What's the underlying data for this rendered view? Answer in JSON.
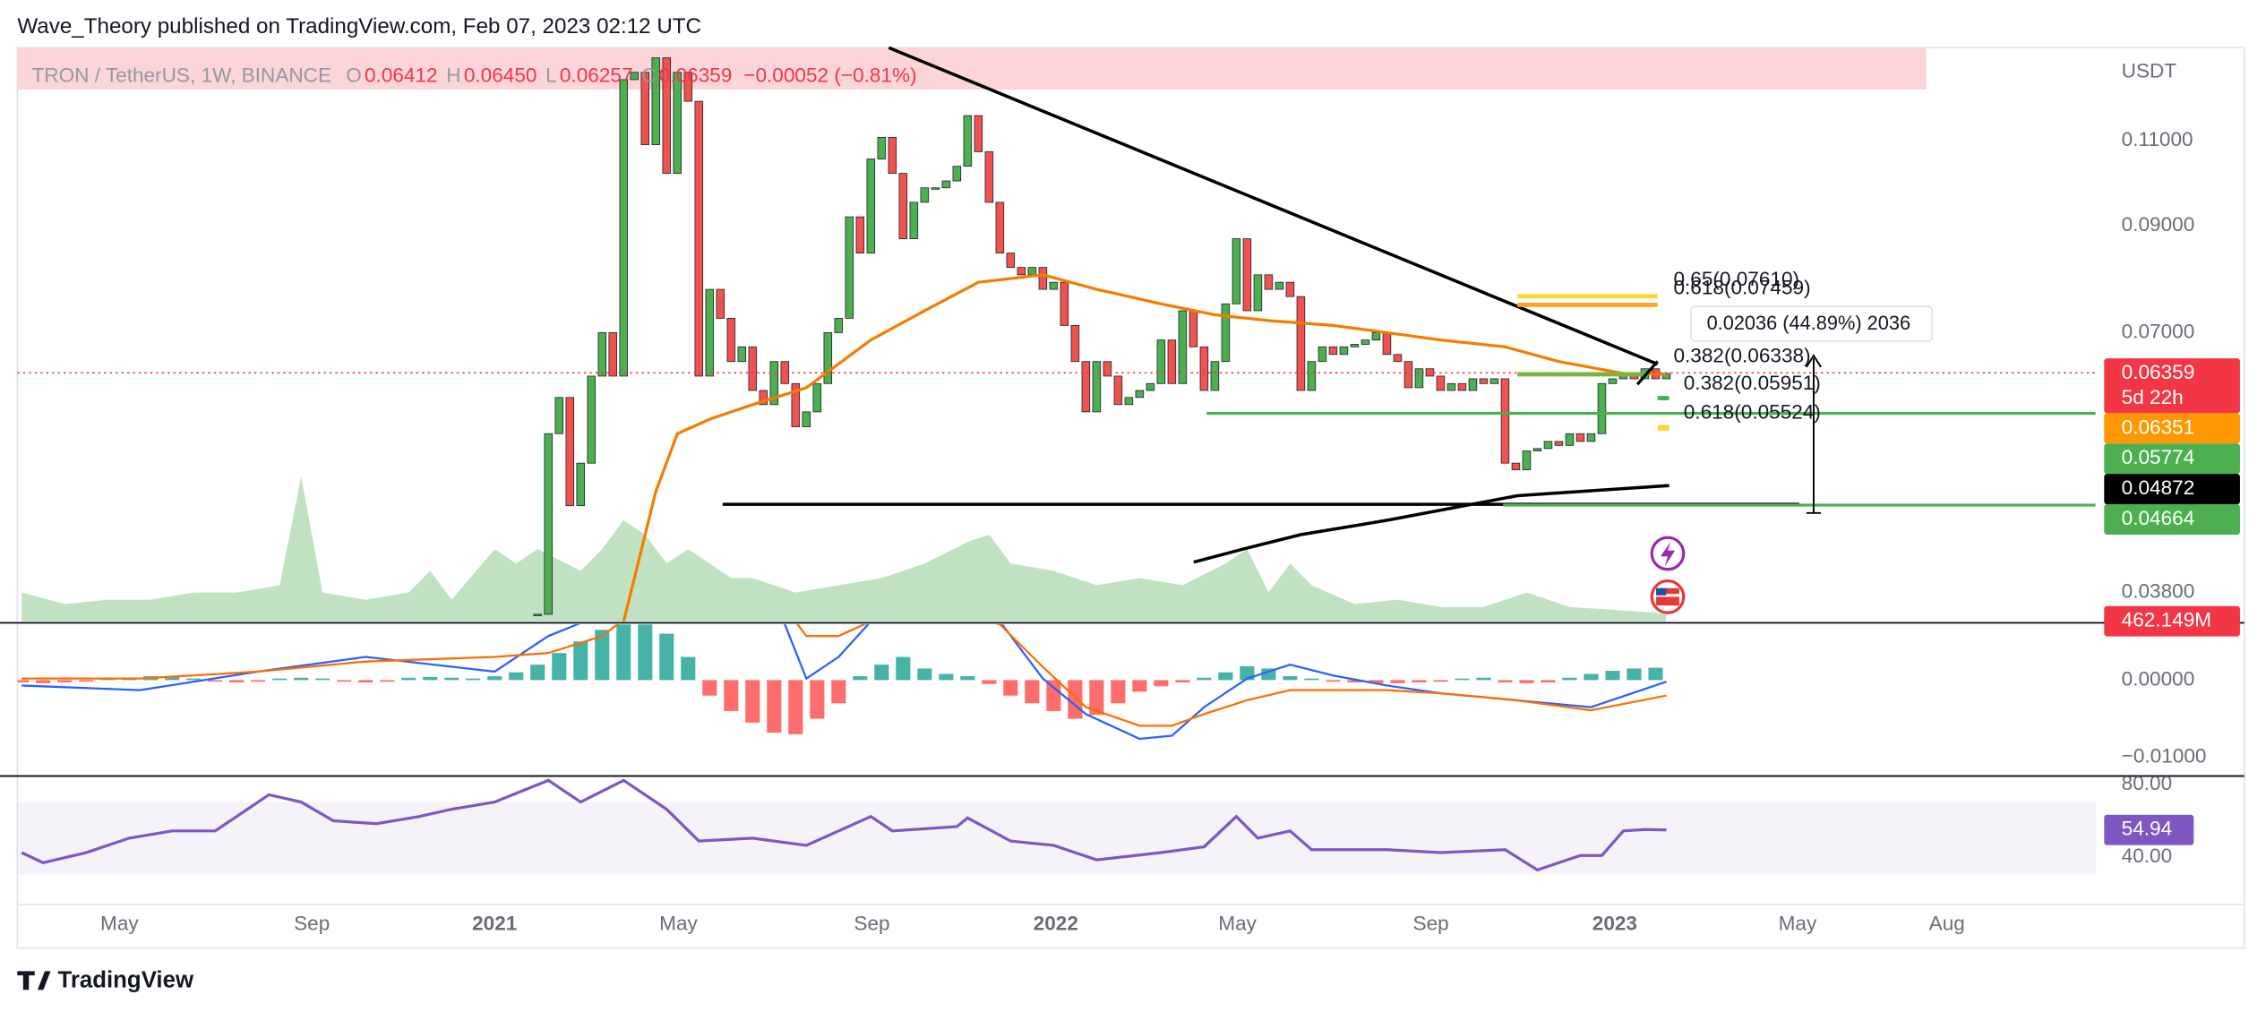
{
  "header": {
    "title": "Wave_Theory published on TradingView.com, Feb 07, 2023 02:12 UTC"
  },
  "footer": {
    "brand": "TradingView"
  },
  "chart_data": {
    "type": "candlestick",
    "legend": {
      "symbol": "TRON / TetherUS, 1W, BINANCE",
      "ohlc": [
        {
          "key": "O",
          "value": 0.06412
        },
        {
          "key": "H",
          "value": 0.0645,
          "label": "0.06450"
        },
        {
          "key": "L",
          "value": 0.06257
        },
        {
          "key": "C",
          "value": 0.06359
        }
      ],
      "change": "−0.00052 (−0.81%)"
    },
    "currency": "USDT",
    "log_scale": true,
    "xlim": [
      -44.4,
      149
    ],
    "xticks": [
      {
        "value": -34.9,
        "label": "May"
      },
      {
        "value": -17,
        "label": "Sep"
      },
      {
        "value": 0,
        "label": "2021"
      },
      {
        "value": 17.1,
        "label": "May"
      },
      {
        "value": 35.1,
        "label": "Sep"
      },
      {
        "value": 52.2,
        "label": "2022"
      },
      {
        "value": 69.1,
        "label": "May"
      },
      {
        "value": 87.1,
        "label": "Sep"
      },
      {
        "value": 104.2,
        "label": "2023"
      },
      {
        "value": 121.2,
        "label": "May"
      },
      {
        "value": 135.1,
        "label": "Aug"
      }
    ],
    "ylim": [
      0.0355,
      0.1368
    ],
    "yticks": [
      {
        "value": 0.11,
        "label": "0.11000"
      },
      {
        "value": 0.09,
        "label": "0.09000"
      },
      {
        "value": 0.07,
        "label": "0.07000"
      },
      {
        "value": 0.038,
        "label": "0.03800"
      }
    ],
    "up_color": "#4caf50",
    "down_color": "#ef5350",
    "border_color": "#1e222d",
    "x": [
      4,
      5,
      6,
      7,
      8,
      9,
      10,
      11,
      12,
      13,
      14,
      15,
      16,
      17,
      18,
      19,
      20,
      21,
      22,
      23,
      24,
      25,
      26,
      27,
      28,
      29,
      30,
      31,
      32,
      33,
      34,
      35,
      36,
      37,
      38,
      39,
      40,
      41,
      42,
      43,
      44,
      45,
      46,
      47,
      48,
      49,
      50,
      51,
      52,
      53,
      54,
      55,
      56,
      57,
      58,
      59,
      60,
      61,
      62,
      63,
      64,
      65,
      66,
      67,
      68,
      69,
      70,
      71,
      72,
      73,
      74,
      75,
      76,
      77,
      78,
      79,
      80,
      81,
      82,
      83,
      84,
      85,
      86,
      87,
      88,
      89,
      90,
      91,
      92,
      93,
      94,
      95,
      96,
      97,
      98,
      99,
      100,
      101,
      102,
      103,
      104,
      105,
      106,
      107,
      108,
      109
    ],
    "close": [
      0.0361,
      0.0552,
      0.0601,
      0.0466,
      0.0515,
      0.0632,
      0.07,
      0.0632,
      0.1269,
      0.1291,
      0.1089,
      0.1336,
      0.1018,
      0.1291,
      0.1206,
      0.0632,
      0.0775,
      0.0724,
      0.0654,
      0.0677,
      0.0611,
      0.0591,
      0.0654,
      0.0621,
      0.0561,
      0.0581,
      0.0621,
      0.07,
      0.0724,
      0.0919,
      0.0844,
      0.1053,
      0.1108,
      0.1018,
      0.0873,
      0.0951,
      0.0984,
      0.0984,
      0.1,
      0.1035,
      0.1166,
      0.1071,
      0.0951,
      0.0844,
      0.0816,
      0.0802,
      0.0816,
      0.0775,
      0.0788,
      0.0712,
      0.0654,
      0.0581,
      0.0654,
      0.0632,
      0.0591,
      0.0601,
      0.0611,
      0.0621,
      0.0688,
      0.0621,
      0.0737,
      0.0677,
      0.0611,
      0.0654,
      0.0749,
      0.0873,
      0.0737,
      0.0802,
      0.0775,
      0.0788,
      0.0762,
      0.0611,
      0.0654,
      0.0677,
      0.0665,
      0.0677,
      0.0681,
      0.0688,
      0.07,
      0.0665,
      0.0654,
      0.0615,
      0.0643,
      0.0632,
      0.0611,
      0.0621,
      0.0611,
      0.0628,
      0.0621,
      0.0628,
      0.0515,
      0.0507,
      0.053,
      0.0533,
      0.0542,
      0.0537,
      0.0552,
      0.0542,
      0.0552,
      0.0621,
      0.0628,
      0.0636,
      0.0628,
      0.0643,
      0.0628,
      0.06359
    ],
    "ma": {
      "color": "#f57c00",
      "x": [
        12,
        15,
        17,
        20,
        24,
        29,
        35,
        40,
        45,
        51,
        56,
        62,
        67,
        72,
        78,
        83,
        88,
        94,
        99,
        105,
        109
      ],
      "values": [
        0.0355,
        0.0482,
        0.0552,
        0.0571,
        0.0591,
        0.0615,
        0.0688,
        0.0737,
        0.0788,
        0.0802,
        0.0775,
        0.0749,
        0.073,
        0.072,
        0.0712,
        0.07,
        0.0688,
        0.0677,
        0.0654,
        0.0636,
        0.06351
      ]
    },
    "price_labels": [
      {
        "value": 0.06359,
        "color": "#f23645",
        "sub": "5d 22h"
      },
      {
        "value": 0.06351,
        "color": "#ff9800"
      },
      {
        "value": 0.05774,
        "color": "#4caf50"
      },
      {
        "value": 0.04872,
        "color": "#000000"
      },
      {
        "value": 0.04664,
        "color": "#4caf50"
      }
    ],
    "annotations": {
      "fib": [
        "0.65(0.07610)",
        "0.618(0.07459)",
        "0.382(0.06338)",
        "0.382(0.05951)",
        "0.618(0.05524)"
      ],
      "measure": "0.02036 (44.89%) 2036"
    },
    "volume": {
      "color": "#a5d6a7",
      "ylim": [
        0,
        39700
      ],
      "label_color": "#f23645",
      "last_label": "462.149M",
      "x": [
        -44,
        -40,
        -36,
        -32,
        -28,
        -24,
        -20,
        -18,
        -16,
        -12,
        -8,
        -6,
        -4,
        0,
        2,
        4,
        8,
        10,
        12,
        14,
        16,
        18,
        20,
        22,
        24,
        28,
        32,
        36,
        40,
        44,
        46,
        48,
        52,
        56,
        60,
        64,
        68,
        70,
        72,
        74,
        76,
        80,
        84,
        88,
        92,
        94,
        96,
        100,
        104,
        108,
        109
      ],
      "values": [
        2000,
        1200,
        1500,
        1500,
        2000,
        2000,
        2500,
        10000,
        2000,
        1500,
        2000,
        3500,
        1500,
        5000,
        4000,
        5000,
        3500,
        5000,
        7000,
        6000,
        4000,
        5000,
        4000,
        3000,
        3000,
        2000,
        2500,
        3000,
        4000,
        5500,
        6000,
        4000,
        3500,
        2500,
        3000,
        2500,
        4000,
        5000,
        2000,
        4000,
        2500,
        1200,
        1500,
        1000,
        1000,
        1500,
        2000,
        1000,
        800,
        600,
        462.149
      ]
    },
    "macd": {
      "ylim": [
        -0.01222,
        0.00722
      ],
      "yticks": [
        {
          "value": 0,
          "label": "0.00000"
        },
        {
          "value": -0.01,
          "label": "−0.01000"
        }
      ],
      "x": [
        -44,
        -33,
        -22,
        -12,
        0,
        5,
        10,
        17,
        24,
        27,
        29,
        32,
        35,
        41,
        47,
        51,
        55,
        60,
        63,
        66,
        70,
        74,
        78,
        83,
        88,
        95,
        102,
        109
      ],
      "macd": {
        "color": "#2962ff",
        "values": [
          -0.0007,
          -0.0013,
          0.0011,
          0.003,
          0.0011,
          0.0057,
          0.0085,
          0.0169,
          0.0131,
          0.0072,
          0.0002,
          0.003,
          0.0076,
          0.0131,
          0.0076,
          0.0002,
          -0.0044,
          -0.0076,
          -0.0072,
          -0.0035,
          0.0002,
          0.002,
          0.0006,
          -0.0007,
          -0.0017,
          -0.0026,
          -0.0035,
          -0.0002
        ]
      },
      "signal": {
        "color": "#ff6d00",
        "values": [
          0.0002,
          0.0002,
          0.0011,
          0.0024,
          0.003,
          0.0035,
          0.0057,
          0.0131,
          0.0113,
          0.0094,
          0.0057,
          0.0057,
          0.0076,
          0.0094,
          0.0072,
          0.0017,
          -0.0035,
          -0.0059,
          -0.0059,
          -0.0044,
          -0.0026,
          -0.0013,
          -0.0013,
          -0.0013,
          -0.0017,
          -0.0026,
          -0.0039,
          -0.002
        ]
      },
      "hist_colors": [
        "#26a69a",
        "#ff5252"
      ],
      "hist_x": [
        -44,
        -42,
        -40,
        -38,
        -36,
        -34,
        -32,
        -30,
        -28,
        -26,
        -24,
        -22,
        -20,
        -18,
        -16,
        -14,
        -12,
        -10,
        -8,
        -6,
        -4,
        -2,
        0,
        2,
        4,
        6,
        8,
        10,
        12,
        14,
        16,
        18,
        20,
        22,
        24,
        26,
        28,
        30,
        32,
        34,
        36,
        38,
        40,
        42,
        44,
        46,
        48,
        50,
        52,
        54,
        56,
        58,
        60,
        62,
        64,
        66,
        68,
        70,
        72,
        74,
        76,
        78,
        80,
        82,
        84,
        86,
        88,
        90,
        92,
        94,
        96,
        98,
        100,
        102,
        104,
        106,
        108
      ],
      "hist": [
        -0.0003,
        -0.0004,
        -0.0003,
        -0.0002,
        0.0002,
        0.0003,
        0.0005,
        0.0004,
        0.0002,
        -0.0002,
        -0.0003,
        -0.0002,
        0.0002,
        0.0003,
        0.0002,
        -0.0002,
        -0.0003,
        -0.0002,
        0.0003,
        0.0004,
        0.0003,
        0.0002,
        0.0005,
        0.001,
        0.002,
        0.0035,
        0.005,
        0.0065,
        0.0072,
        0.0072,
        0.006,
        0.003,
        -0.002,
        -0.004,
        -0.0055,
        -0.0068,
        -0.007,
        -0.005,
        -0.003,
        0.0005,
        0.002,
        0.003,
        0.0015,
        0.0008,
        0.0005,
        -0.0005,
        -0.002,
        -0.003,
        -0.004,
        -0.005,
        -0.0045,
        -0.003,
        -0.0015,
        -0.0008,
        -0.0003,
        0.0003,
        0.001,
        0.0018,
        0.0015,
        0.0005,
        0.0002,
        -0.0002,
        -0.0003,
        -0.0004,
        -0.0004,
        -0.0003,
        -0.0002,
        0.0002,
        0.0003,
        -0.0003,
        -0.0004,
        -0.0003,
        0.0003,
        0.0008,
        0.0012,
        0.0015,
        0.0016
      ]
    },
    "rsi": {
      "color": "#7e57c2",
      "ylim": [
        14.4,
        84.8
      ],
      "yticks": [
        {
          "value": 80,
          "label": "80.00"
        },
        {
          "value": 40,
          "label": "40.00"
        }
      ],
      "x": [
        -44,
        -42,
        -38,
        -34,
        -30,
        -26,
        -21,
        -18,
        -15,
        -11,
        -7,
        -4,
        0,
        5,
        8,
        12,
        16,
        19,
        24,
        29,
        35,
        37,
        43,
        44,
        48,
        52,
        56,
        62,
        66,
        69,
        71,
        74,
        76,
        83,
        88,
        94,
        97,
        101,
        103,
        105,
        107,
        109
      ],
      "values": [
        42.4,
        36.8,
        42.4,
        50.4,
        54.4,
        54.4,
        74.4,
        70.4,
        60,
        58.4,
        62.4,
        66.4,
        70.4,
        82.4,
        70.4,
        82.4,
        66.4,
        48.8,
        50.4,
        46.4,
        62.4,
        54.4,
        56.8,
        61.6,
        48.8,
        46.4,
        38.4,
        42.4,
        45.6,
        62.4,
        50.4,
        54.4,
        44,
        44,
        42.4,
        44,
        32.8,
        40.8,
        40.8,
        54.4,
        55.2,
        54.94
      ]
    }
  }
}
